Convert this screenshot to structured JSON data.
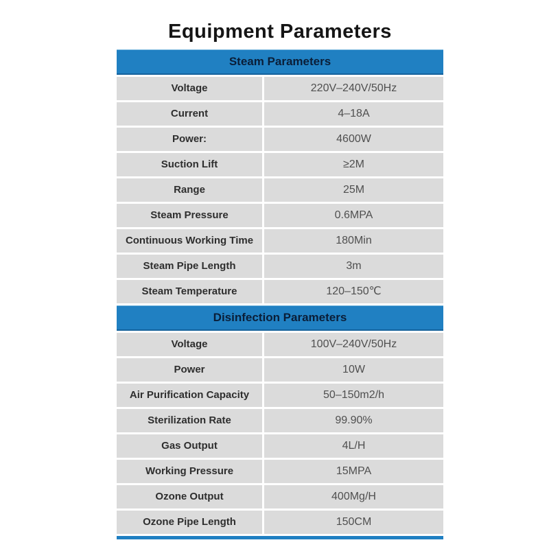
{
  "title": "Equipment Parameters",
  "colors": {
    "header_blue": "#2080c2",
    "header_blue_dark_edge": "#15629c",
    "header_blue_light_edge": "#7cb9de",
    "section_title_text": "#0a1e38",
    "row_background": "#dbdbdb",
    "label_text": "#2e2e2e",
    "value_text": "#4f4f4f",
    "bottom_bar_blue": "#1f7fc2",
    "page_background": "#ffffff"
  },
  "sections": [
    {
      "title": "Steam Parameters",
      "rows": [
        {
          "label": "Voltage",
          "value": "220V–240V/50Hz"
        },
        {
          "label": "Current",
          "value": "4–18A"
        },
        {
          "label": "Power:",
          "value": "4600W"
        },
        {
          "label": "Suction Lift",
          "value": "≥2M"
        },
        {
          "label": "Range",
          "value": "25M"
        },
        {
          "label": "Steam Pressure",
          "value": "0.6MPA"
        },
        {
          "label": "Continuous Working Time",
          "value": "180Min"
        },
        {
          "label": "Steam Pipe Length",
          "value": "3m"
        },
        {
          "label": "Steam Temperature",
          "value": "120–150℃"
        }
      ]
    },
    {
      "title": "Disinfection Parameters",
      "rows": [
        {
          "label": "Voltage",
          "value": "100V–240V/50Hz"
        },
        {
          "label": "Power",
          "value": "10W"
        },
        {
          "label": "Air Purification Capacity",
          "value": "50–150m2/h"
        },
        {
          "label": "Sterilization Rate",
          "value": "99.90%"
        },
        {
          "label": "Gas Output",
          "value": "4L/H"
        },
        {
          "label": "Working Pressure",
          "value": "15MPA"
        },
        {
          "label": "Ozone Output",
          "value": "400Mg/H"
        },
        {
          "label": "Ozone Pipe Length",
          "value": "150CM"
        }
      ]
    }
  ]
}
